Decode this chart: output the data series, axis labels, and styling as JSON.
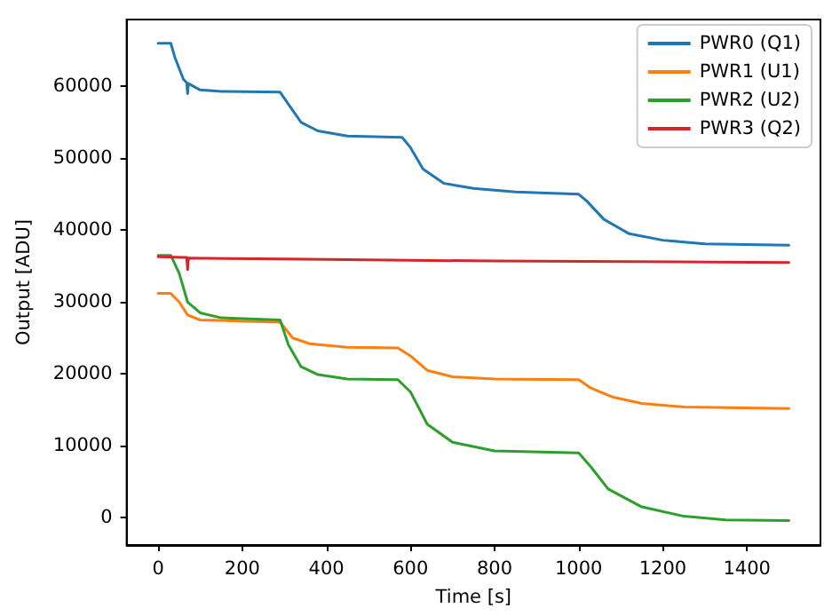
{
  "chart_data": {
    "type": "line",
    "xlabel": "Time [s]",
    "ylabel": "Output [ADU]",
    "xlim": [
      -75,
      1575
    ],
    "xticks": [
      0,
      200,
      400,
      600,
      800,
      1000,
      1200,
      1400
    ],
    "ylim": [
      -3800,
      69300
    ],
    "yticks": [
      0,
      10000,
      20000,
      30000,
      40000,
      50000,
      60000
    ],
    "grid": false,
    "legend": "top right",
    "marker": "none",
    "line_style": "solid",
    "series": [
      {
        "name": "PWR0 (Q1)",
        "color": "#1f77b4",
        "x": [
          0,
          30,
          40,
          60,
          68,
          70,
          72,
          100,
          150,
          290,
          310,
          340,
          380,
          450,
          580,
          600,
          630,
          680,
          750,
          850,
          1000,
          1020,
          1060,
          1120,
          1200,
          1300,
          1500
        ],
        "values": [
          66000,
          66000,
          64000,
          61000,
          60500,
          59000,
          60400,
          59500,
          59300,
          59200,
          57500,
          55000,
          53800,
          53100,
          52900,
          51500,
          48500,
          46500,
          45800,
          45300,
          45000,
          44000,
          41500,
          39500,
          38600,
          38100,
          37900
        ]
      },
      {
        "name": "PWR1 (U1)",
        "color": "#ff7f0e",
        "x": [
          0,
          30,
          50,
          70,
          100,
          290,
          320,
          360,
          450,
          570,
          600,
          640,
          700,
          800,
          1000,
          1030,
          1080,
          1150,
          1250,
          1500
        ],
        "values": [
          31200,
          31200,
          30000,
          28200,
          27500,
          27200,
          25000,
          24200,
          23700,
          23600,
          22500,
          20500,
          19600,
          19300,
          19200,
          18000,
          16800,
          15900,
          15400,
          15200
        ]
      },
      {
        "name": "PWR2 (U2)",
        "color": "#2ca02c",
        "x": [
          0,
          30,
          50,
          70,
          100,
          150,
          290,
          310,
          340,
          380,
          450,
          570,
          600,
          640,
          700,
          800,
          1000,
          1030,
          1070,
          1150,
          1250,
          1350,
          1500
        ],
        "values": [
          36500,
          36500,
          34000,
          30000,
          28500,
          27800,
          27500,
          24000,
          21000,
          19900,
          19300,
          19200,
          17500,
          13000,
          10500,
          9300,
          9000,
          7000,
          4000,
          1500,
          200,
          -300,
          -400
        ]
      },
      {
        "name": "PWR3 (Q2)",
        "color": "#d62728",
        "x": [
          0,
          60,
          68,
          70,
          72,
          300,
          800,
          1500
        ],
        "values": [
          36300,
          36200,
          36200,
          34500,
          36100,
          36000,
          35700,
          35500
        ]
      }
    ]
  }
}
